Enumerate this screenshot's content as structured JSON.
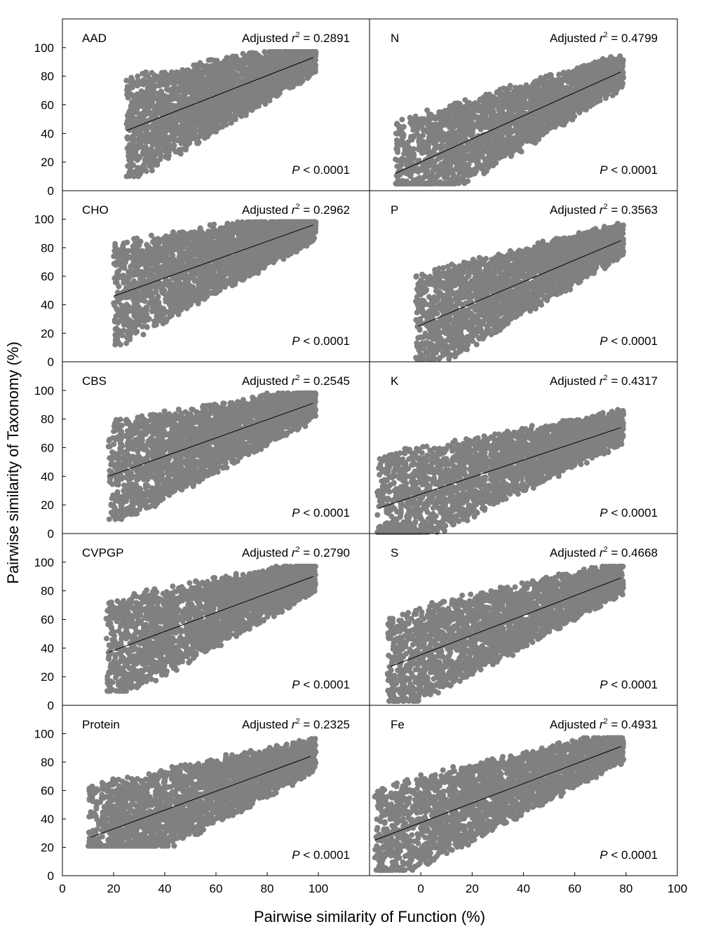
{
  "figure": {
    "xlabel": "Pairwise similarity of Function (%)",
    "ylabel": "Pairwise  similarity of Taxonomy (%)",
    "point_color": "#808080",
    "line_color": "#000000"
  },
  "chart_data": [
    {
      "type": "scatter",
      "panel": "AAD",
      "column": "left",
      "r2_label": "Adjusted",
      "r2_symbol": "r",
      "r2_value": "= 0.2891",
      "p_label": "P",
      "p_value": "< 0.0001",
      "xlim": [
        0,
        120
      ],
      "ylim": [
        0,
        120
      ],
      "xticks": [
        0,
        20,
        40,
        60,
        80,
        100
      ],
      "yticks": [
        0,
        20,
        40,
        60,
        80,
        100
      ],
      "fit_line": {
        "x": [
          25,
          98
        ],
        "y": [
          42,
          93
        ]
      },
      "cloud": {
        "x_range": [
          25,
          99
        ],
        "y_range": [
          10,
          97
        ]
      }
    },
    {
      "type": "scatter",
      "panel": "N",
      "column": "right",
      "r2_label": "Adjusted",
      "r2_symbol": "r",
      "r2_value": "= 0.4799",
      "p_label": "P",
      "p_value": "< 0.0001",
      "xlim": [
        -20,
        100
      ],
      "ylim": [
        0,
        120
      ],
      "xticks": [
        0,
        20,
        40,
        60,
        80,
        100
      ],
      "yticks": [
        0,
        20,
        40,
        60,
        80,
        100
      ],
      "fit_line": {
        "x": [
          -10,
          78
        ],
        "y": [
          12,
          83
        ]
      },
      "cloud": {
        "x_range": [
          -10,
          79
        ],
        "y_range": [
          5,
          97
        ]
      }
    },
    {
      "type": "scatter",
      "panel": "CHO",
      "column": "left",
      "r2_label": "Adjusted",
      "r2_symbol": "r",
      "r2_value": "= 0.2962",
      "p_label": "P",
      "p_value": "< 0.0001",
      "xlim": [
        0,
        120
      ],
      "ylim": [
        0,
        120
      ],
      "xticks": [
        0,
        20,
        40,
        60,
        80,
        100
      ],
      "yticks": [
        0,
        20,
        40,
        60,
        80,
        100
      ],
      "fit_line": {
        "x": [
          20,
          98
        ],
        "y": [
          46,
          96
        ]
      },
      "cloud": {
        "x_range": [
          20,
          99
        ],
        "y_range": [
          12,
          98
        ]
      }
    },
    {
      "type": "scatter",
      "panel": "P",
      "column": "right",
      "r2_label": "Adjusted",
      "r2_symbol": "r",
      "r2_value": "= 0.3563",
      "p_label": "P",
      "p_value": "< 0.0001",
      "xlim": [
        -20,
        100
      ],
      "ylim": [
        0,
        120
      ],
      "xticks": [
        0,
        20,
        40,
        60,
        80,
        100
      ],
      "yticks": [
        0,
        20,
        40,
        60,
        80,
        100
      ],
      "fit_line": {
        "x": [
          -1,
          78
        ],
        "y": [
          25,
          85
        ]
      },
      "cloud": {
        "x_range": [
          -2,
          79
        ],
        "y_range": [
          2,
          97
        ]
      }
    },
    {
      "type": "scatter",
      "panel": "CBS",
      "column": "left",
      "r2_label": "Adjusted",
      "r2_symbol": "r",
      "r2_value": "= 0.2545",
      "p_label": "P",
      "p_value": "< 0.0001",
      "xlim": [
        0,
        120
      ],
      "ylim": [
        0,
        120
      ],
      "xticks": [
        0,
        20,
        40,
        60,
        80,
        100
      ],
      "yticks": [
        0,
        20,
        40,
        60,
        80,
        100
      ],
      "fit_line": {
        "x": [
          18,
          98
        ],
        "y": [
          40,
          91
        ]
      },
      "cloud": {
        "x_range": [
          18,
          99
        ],
        "y_range": [
          10,
          98
        ]
      }
    },
    {
      "type": "scatter",
      "panel": "K",
      "column": "right",
      "r2_label": "Adjusted",
      "r2_symbol": "r",
      "r2_value": "= 0.4317",
      "p_label": "P",
      "p_value": "< 0.0001",
      "xlim": [
        -20,
        100
      ],
      "ylim": [
        0,
        120
      ],
      "xticks": [
        0,
        20,
        40,
        60,
        80,
        100
      ],
      "yticks": [
        0,
        20,
        40,
        60,
        80,
        100
      ],
      "fit_line": {
        "x": [
          -16,
          78
        ],
        "y": [
          18,
          74
        ]
      },
      "cloud": {
        "x_range": [
          -17,
          79
        ],
        "y_range": [
          1,
          97
        ]
      }
    },
    {
      "type": "scatter",
      "panel": "CVPGP",
      "column": "left",
      "r2_label": "Adjusted",
      "r2_symbol": "r",
      "r2_value": "= 0.2790",
      "p_label": "P",
      "p_value": "< 0.0001",
      "xlim": [
        0,
        120
      ],
      "ylim": [
        0,
        120
      ],
      "xticks": [
        0,
        20,
        40,
        60,
        80,
        100
      ],
      "yticks": [
        0,
        20,
        40,
        60,
        80,
        100
      ],
      "fit_line": {
        "x": [
          18,
          98
        ],
        "y": [
          37,
          90
        ]
      },
      "cloud": {
        "x_range": [
          17,
          99
        ],
        "y_range": [
          10,
          97
        ]
      }
    },
    {
      "type": "scatter",
      "panel": "S",
      "column": "right",
      "r2_label": "Adjusted",
      "r2_symbol": "r",
      "r2_value": "= 0.4668",
      "p_label": "P",
      "p_value": "< 0.0001",
      "xlim": [
        -20,
        100
      ],
      "ylim": [
        0,
        120
      ],
      "xticks": [
        0,
        20,
        40,
        60,
        80,
        100
      ],
      "yticks": [
        0,
        20,
        40,
        60,
        80,
        100
      ],
      "fit_line": {
        "x": [
          -12,
          78
        ],
        "y": [
          27,
          89
        ]
      },
      "cloud": {
        "x_range": [
          -13,
          79
        ],
        "y_range": [
          3,
          97
        ]
      }
    },
    {
      "type": "scatter",
      "panel": "Protein",
      "column": "left",
      "r2_label": "Adjusted",
      "r2_symbol": "r",
      "r2_value": "= 0.2325",
      "p_label": "P",
      "p_value": "< 0.0001",
      "xlim": [
        0,
        120
      ],
      "ylim": [
        0,
        120
      ],
      "xticks": [
        0,
        20,
        40,
        60,
        80,
        100
      ],
      "yticks": [
        0,
        20,
        40,
        60,
        80,
        100
      ],
      "fit_line": {
        "x": [
          11,
          97
        ],
        "y": [
          27,
          84
        ]
      },
      "cloud": {
        "x_range": [
          10,
          99
        ],
        "y_range": [
          21,
          98
        ]
      }
    },
    {
      "type": "scatter",
      "panel": "Fe",
      "column": "right",
      "r2_label": "Adjusted",
      "r2_symbol": "r",
      "r2_value": "= 0.4931",
      "p_label": "P",
      "p_value": "< 0.0001",
      "xlim": [
        -20,
        100
      ],
      "ylim": [
        0,
        120
      ],
      "xticks": [
        0,
        20,
        40,
        60,
        80,
        100
      ],
      "yticks": [
        0,
        20,
        40,
        60,
        80,
        100
      ],
      "fit_line": {
        "x": [
          -18,
          78
        ],
        "y": [
          25,
          91
        ]
      },
      "cloud": {
        "x_range": [
          -18,
          79
        ],
        "y_range": [
          4,
          97
        ]
      }
    }
  ]
}
